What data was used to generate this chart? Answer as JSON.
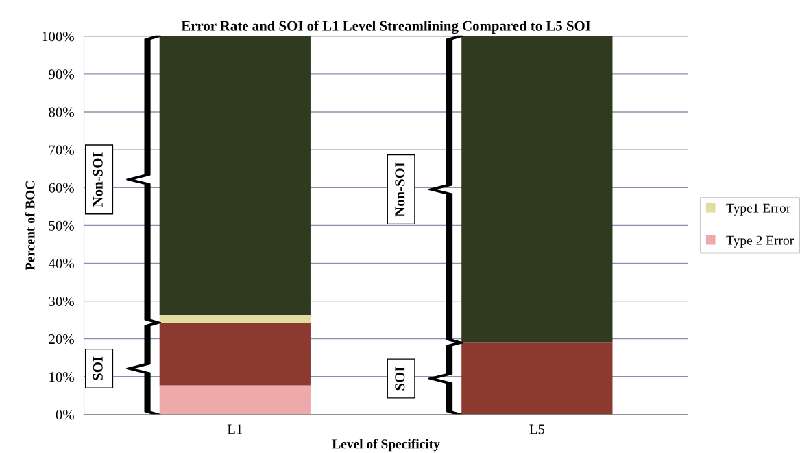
{
  "chart_data": {
    "type": "bar",
    "stacked": true,
    "title": "Error Rate and SOI of L1 Level Streamlining Compared to L5 SOI",
    "xlabel": "Level of Specificity",
    "ylabel": "Percent of BOC",
    "categories": [
      "L1",
      "L5"
    ],
    "series": [
      {
        "name": "Type 2 Error",
        "color": "#eeaaaa",
        "values": [
          7.7,
          0
        ]
      },
      {
        "color": "#8c3a30",
        "values": [
          16.6,
          19
        ]
      },
      {
        "name": "Type1 Error",
        "color": "#e3dca0",
        "values": [
          2,
          0
        ]
      },
      {
        "color": "#2f3a1e",
        "values": [
          73.7,
          81
        ]
      }
    ],
    "ylim": [
      0,
      100
    ],
    "yticks": [
      {
        "value": 0,
        "label": "0%"
      },
      {
        "value": 10,
        "label": "10%"
      },
      {
        "value": 20,
        "label": "20%"
      },
      {
        "value": 30,
        "label": "30%"
      },
      {
        "value": 40,
        "label": "40%"
      },
      {
        "value": 50,
        "label": "50%"
      },
      {
        "value": 60,
        "label": "60%"
      },
      {
        "value": 70,
        "label": "70%"
      },
      {
        "value": 80,
        "label": "80%"
      },
      {
        "value": 90,
        "label": "90%"
      },
      {
        "value": 100,
        "label": "100%"
      }
    ],
    "grid": "y",
    "legend": "right",
    "annotations": [
      "SOI",
      "Non-SOI",
      "SOI",
      "Non-SOI"
    ]
  }
}
